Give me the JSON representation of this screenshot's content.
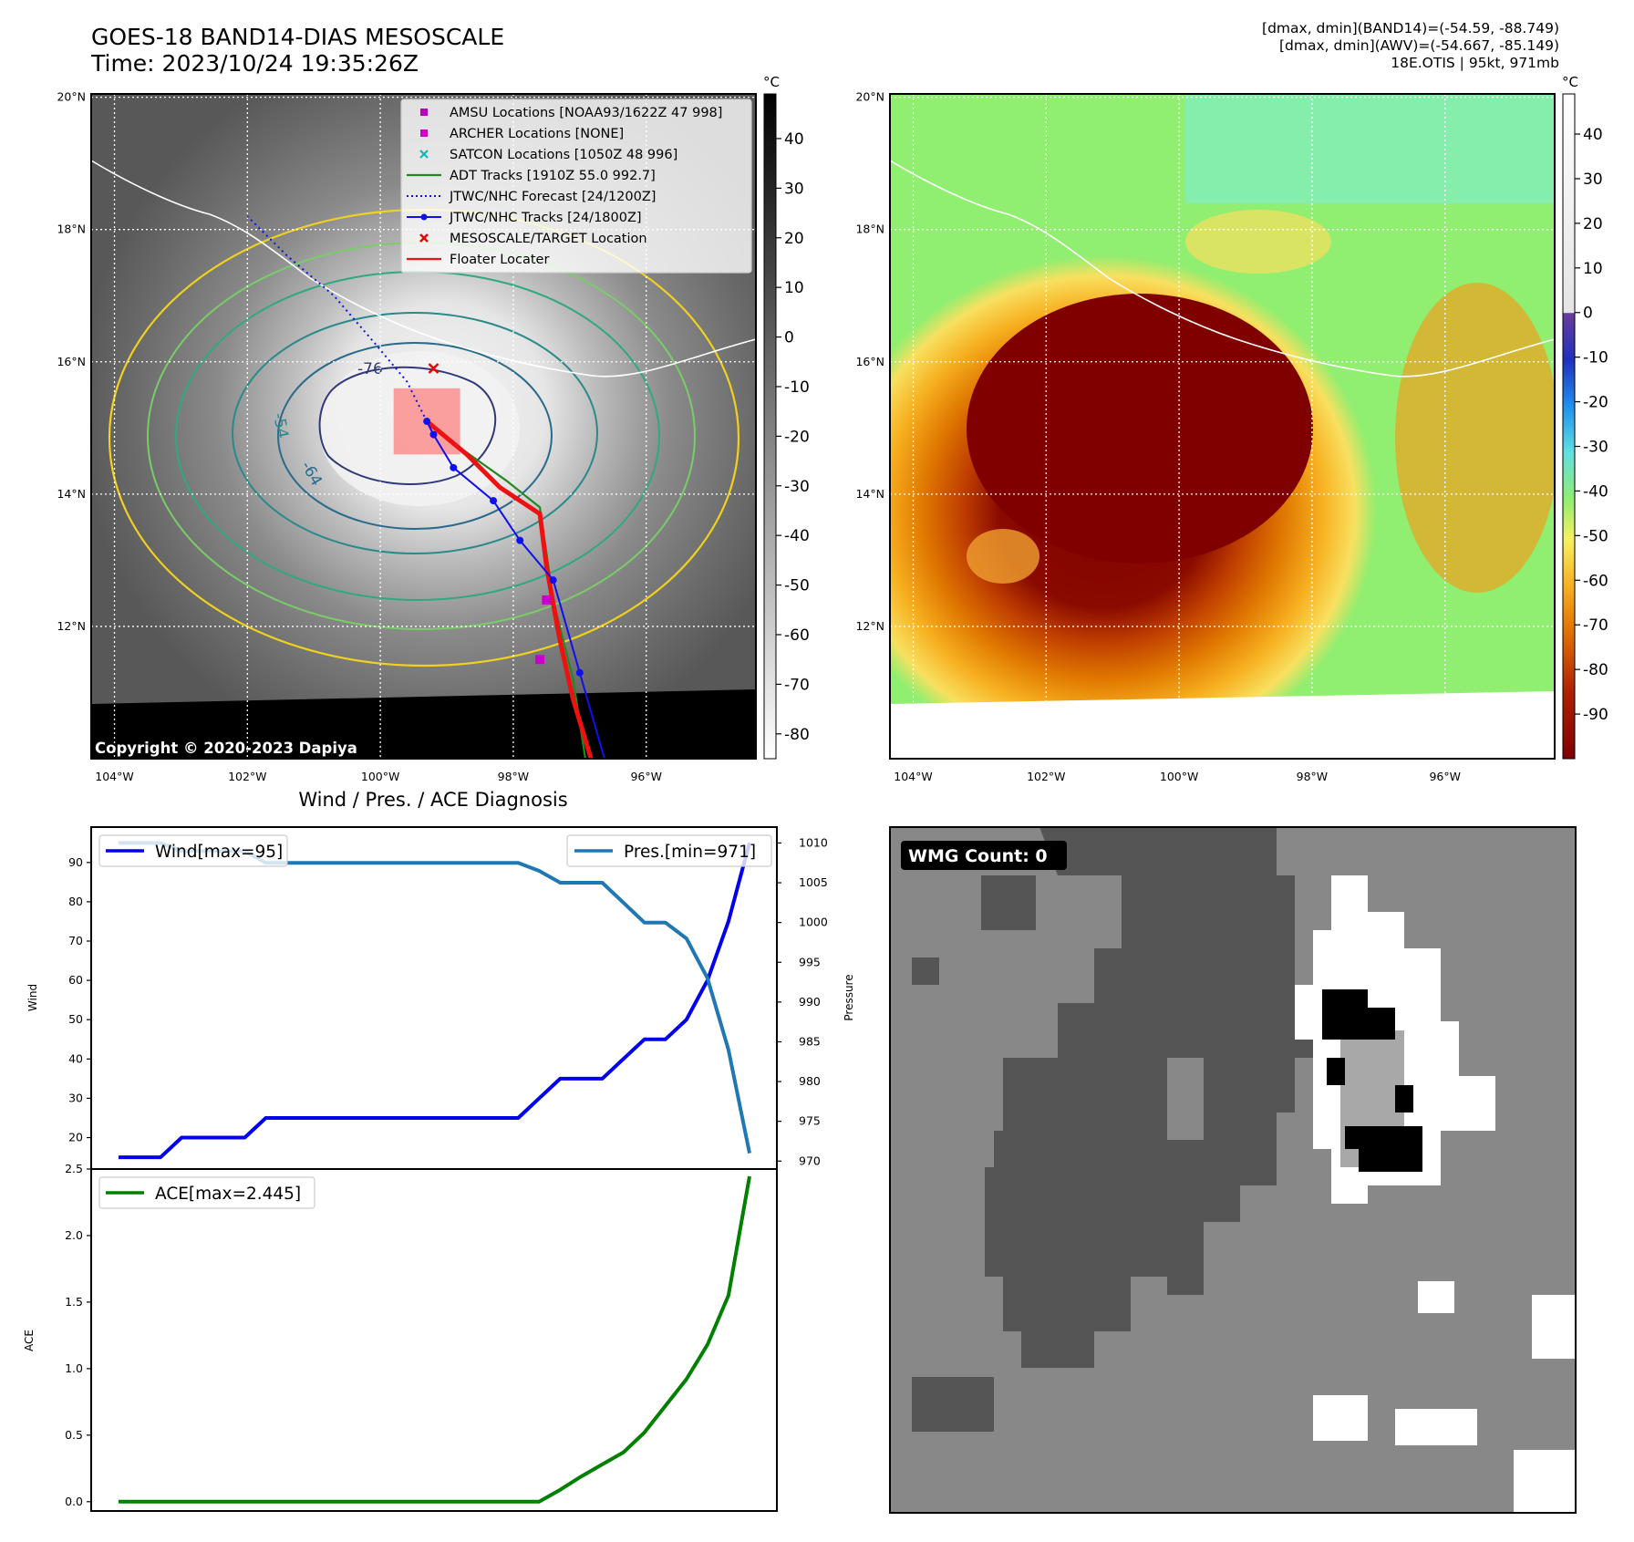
{
  "header": {
    "title": "GOES-18 BAND14-DIAS MESOSCALE",
    "time": "Time: 2023/10/24 19:35:26Z",
    "info": [
      "[dmax, dmin](BAND14)=(-54.59, -88.749)",
      "[dmax, dmin](AWV)=(-54.667, -85.149)",
      "18E.OTIS | 95kt, 971mb"
    ]
  },
  "map_axes": {
    "lat_labels": [
      "20°N",
      "18°N",
      "16°N",
      "14°N",
      "12°N"
    ],
    "lat_values": [
      20,
      18,
      16,
      14,
      12
    ],
    "lon_labels": [
      "104°W",
      "102°W",
      "100°W",
      "98°W",
      "96°W"
    ],
    "lon_values": [
      -104,
      -102,
      -100,
      -98,
      -96
    ],
    "lon_range": [
      -104.35,
      -94.35
    ],
    "lat_range": [
      10.0,
      20.05
    ]
  },
  "ir_panel": {
    "copyright": "Copyright © 2020-2023 Dapiya",
    "colorbar_unit": "°C",
    "colorbar_ticks": [
      40,
      30,
      20,
      10,
      0,
      -10,
      -20,
      -30,
      -40,
      -50,
      -60,
      -70,
      -80
    ],
    "colorbar_range": [
      -85,
      49
    ],
    "contour_labels": [
      "-76",
      "-54",
      "-64"
    ],
    "legend": [
      "AMSU Locations [NOAA93/1622Z 47 998]",
      "ARCHER Locations [NONE]",
      "SATCON Locations [1050Z 48 996]",
      "ADT Tracks [1910Z 55.0 992.7]",
      "JTWC/NHC Forecast [24/1200Z]",
      "JTWC/NHC Tracks [24/1800Z]",
      "MESOSCALE/TARGET Location",
      "Floater Locater"
    ],
    "track_best": [
      [
        -96.6,
        9.9
      ],
      [
        -97.0,
        11.3
      ],
      [
        -97.4,
        12.7
      ],
      [
        -97.9,
        13.3
      ],
      [
        -98.3,
        13.9
      ],
      [
        -98.9,
        14.4
      ],
      [
        -99.2,
        14.9
      ],
      [
        -99.3,
        15.1
      ]
    ],
    "track_forecast": [
      [
        -99.3,
        15.1
      ],
      [
        -99.6,
        15.7
      ],
      [
        -100.1,
        16.3
      ],
      [
        -100.7,
        17.0
      ],
      [
        -101.4,
        17.6
      ],
      [
        -102.0,
        18.2
      ]
    ],
    "track_adt": [
      [
        -96.9,
        9.9
      ],
      [
        -97.1,
        11.2
      ],
      [
        -97.4,
        12.4
      ],
      [
        -97.6,
        13.8
      ],
      [
        -98.1,
        14.2
      ],
      [
        -98.8,
        14.7
      ],
      [
        -99.3,
        15.1
      ]
    ],
    "floater": [
      [
        -96.8,
        9.9
      ],
      [
        -97.1,
        10.9
      ],
      [
        -97.3,
        11.8
      ],
      [
        -97.5,
        12.9
      ],
      [
        -97.6,
        13.7
      ],
      [
        -98.2,
        14.1
      ],
      [
        -98.7,
        14.6
      ],
      [
        -99.3,
        15.1
      ]
    ],
    "target": [
      -99.2,
      15.9
    ],
    "amsu": [
      [
        -97.6,
        11.5
      ],
      [
        -97.5,
        12.4
      ]
    ],
    "mesoscale_box": [
      [
        -99.8,
        14.6
      ],
      [
        -98.8,
        15.6
      ]
    ]
  },
  "awv_panel": {
    "colorbar_unit": "°C",
    "colorbar_ticks": [
      40,
      30,
      20,
      10,
      0,
      -10,
      -20,
      -30,
      -40,
      -50,
      -60,
      -70,
      -80,
      -90
    ],
    "colorbar_range": [
      -100,
      49
    ]
  },
  "chart_data": [
    {
      "type": "line",
      "title": "Wind / Pres. / ACE Diagnosis",
      "ylabel": "Wind",
      "y2label": "Pressure",
      "ylim": [
        12,
        99
      ],
      "y2lim": [
        969,
        1012
      ],
      "yticks": [
        20,
        30,
        40,
        50,
        60,
        70,
        80,
        90
      ],
      "y2ticks": [
        970,
        975,
        980,
        985,
        990,
        995,
        1000,
        1005,
        1010
      ],
      "x": [
        0,
        1,
        2,
        3,
        4,
        5,
        6,
        7,
        8,
        9,
        10,
        11,
        12,
        13,
        14,
        15,
        16,
        17,
        18,
        19,
        20,
        21,
        22,
        23,
        24,
        25,
        26,
        27,
        28,
        29,
        30
      ],
      "xlim": [
        -1.3,
        31.3
      ],
      "series": [
        {
          "name": "Wind[max=95]",
          "axis": "left",
          "color": "#0000ee",
          "values": [
            15,
            15,
            15,
            20,
            20,
            20,
            20,
            25,
            25,
            25,
            25,
            25,
            25,
            25,
            25,
            25,
            25,
            25,
            25,
            25,
            30,
            35,
            35,
            35,
            40,
            45,
            45,
            50,
            60,
            75,
            95
          ]
        },
        {
          "name": "Pres.[min=971]",
          "axis": "right",
          "color": "#1f77b4",
          "values": [
            1010,
            1010,
            1010,
            1009,
            1009,
            1009,
            1009,
            1007.5,
            1007.5,
            1007.5,
            1007.5,
            1007.5,
            1007.5,
            1007.5,
            1007.5,
            1007.5,
            1007.5,
            1007.5,
            1007.5,
            1007.5,
            1006.5,
            1005,
            1005,
            1005,
            1002.5,
            1000,
            1000,
            998,
            993,
            984,
            971
          ]
        }
      ]
    },
    {
      "type": "line",
      "ylabel": "ACE",
      "ylim": [
        -0.07,
        2.5
      ],
      "yticks": [
        0.0,
        0.5,
        1.0,
        1.5,
        2.0,
        2.5
      ],
      "ytick_labels": [
        "0.0",
        "0.5",
        "1.0",
        "1.5",
        "2.0",
        "2.5"
      ],
      "x": [
        0,
        1,
        2,
        3,
        4,
        5,
        6,
        7,
        8,
        9,
        10,
        11,
        12,
        13,
        14,
        15,
        16,
        17,
        18,
        19,
        20,
        21,
        22,
        23,
        24,
        25,
        26,
        27,
        28,
        29,
        30
      ],
      "xlim": [
        -1.3,
        31.3
      ],
      "series": [
        {
          "name": "ACE[max=2.445]",
          "color": "#008000",
          "values": [
            0,
            0,
            0,
            0,
            0,
            0,
            0,
            0,
            0,
            0,
            0,
            0,
            0,
            0,
            0,
            0,
            0,
            0,
            0,
            0,
            0,
            0.09,
            0.19,
            0.28,
            0.37,
            0.52,
            0.72,
            0.92,
            1.18,
            1.55,
            2.445
          ]
        }
      ]
    }
  ],
  "wmg_panel": {
    "label": "WMG Count: 0"
  },
  "colors": {
    "ir_background": "#555555",
    "eye_core": "#eeeeee",
    "awv_cold": "#800000",
    "awv_warm": "#90ee70",
    "wind": "#0000ee",
    "pressure": "#1f77b4",
    "ace": "#008000",
    "track_red": "#ee1111",
    "track_blue": "#1010ee",
    "track_green": "#228822"
  }
}
